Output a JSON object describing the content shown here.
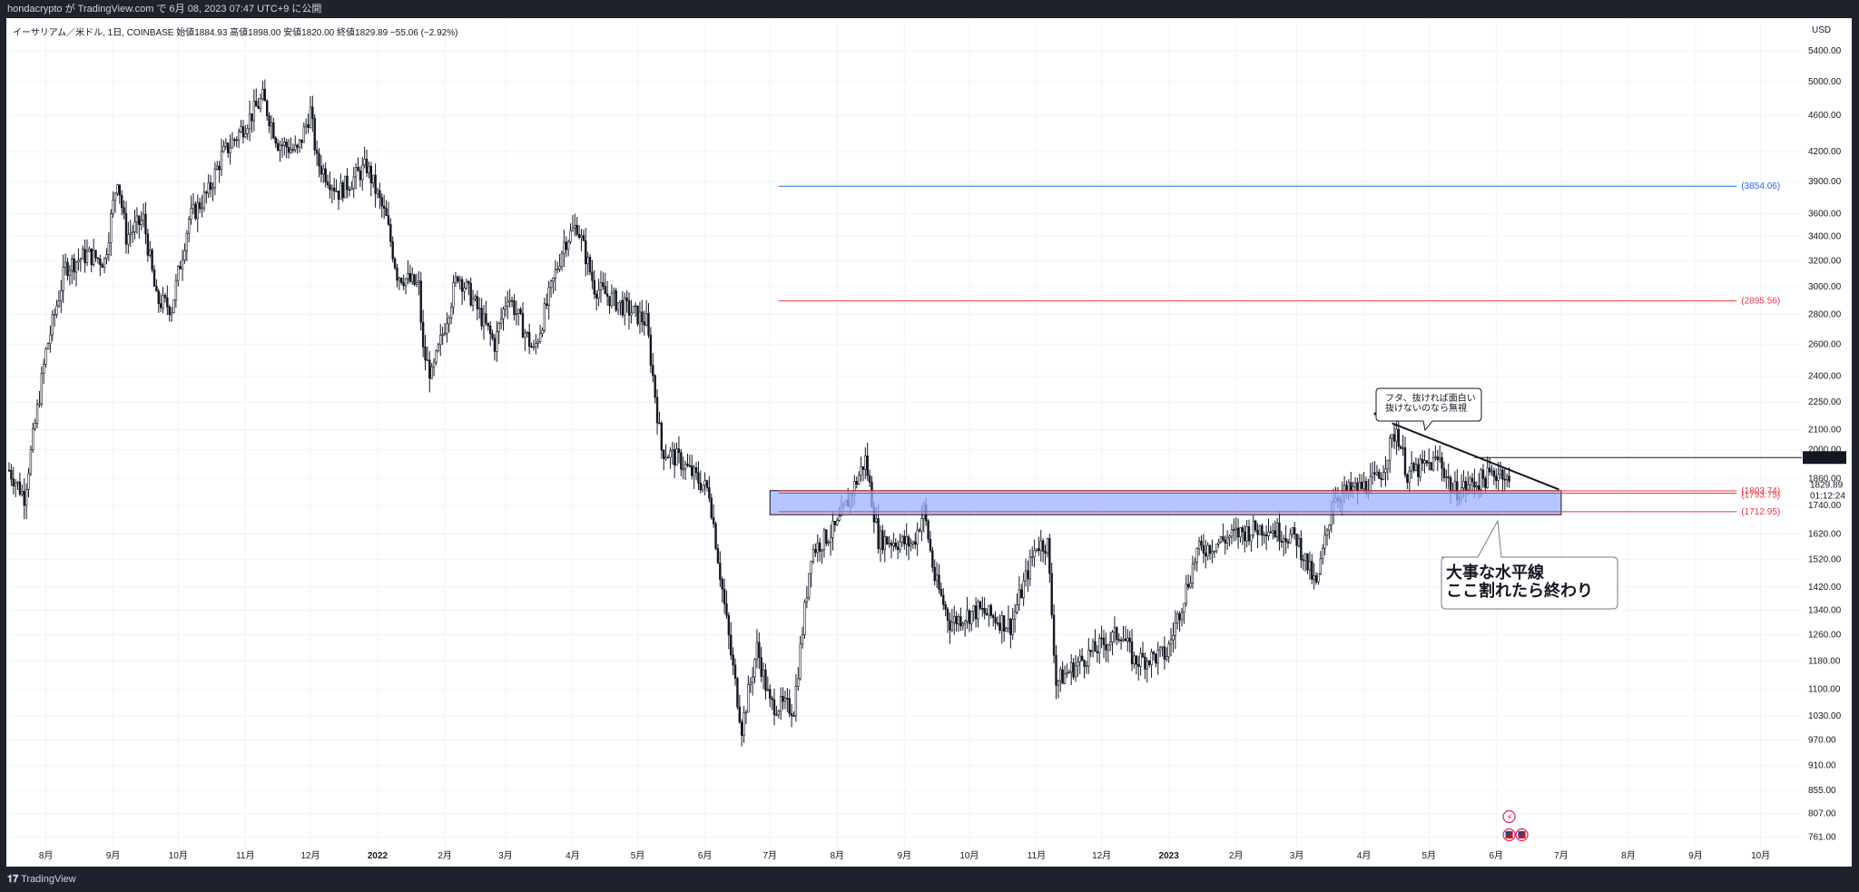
{
  "header": {
    "publish_text": "hondacrypto が TradingView.com で 6月 08, 2023 07:47 UTC+9 に公開"
  },
  "legend_text": "イーサリアム／米ドル, 1日, COINBASE  始値1884.93  高値1898.00  安値1820.00  終値1829.89  −55.06 (−2.92%)",
  "footer": {
    "brand": "TradingView"
  },
  "chart_data": {
    "type": "candlestick",
    "symbol": "イーサリアム／米ドル",
    "interval": "1日",
    "exchange": "COINBASE",
    "ohlc_last": {
      "open": 1884.93,
      "high": 1898.0,
      "low": 1820.0,
      "close": 1829.89,
      "change": -55.06,
      "change_pct": -2.92
    },
    "y_axis": {
      "unit": "USD",
      "scale": "log",
      "range": [
        740,
        5600
      ],
      "ticks": [
        761.0,
        807.0,
        855.0,
        910.0,
        970.0,
        1030.0,
        1100.0,
        1180.0,
        1260.0,
        1340.0,
        1420.0,
        1520.0,
        1620.0,
        1740.0,
        1860.0,
        2000.0,
        2100.0,
        2250.0,
        2400.0,
        2600.0,
        2800.0,
        3000.0,
        3200.0,
        3400.0,
        3600.0,
        3900.0,
        4200.0,
        4600.0,
        5000.0,
        5400.0
      ]
    },
    "x_axis": {
      "range": [
        "2021-07-15",
        "2023-10-20"
      ],
      "ticks": [
        {
          "date": "2021-08-01",
          "label": "8月"
        },
        {
          "date": "2021-09-01",
          "label": "9月"
        },
        {
          "date": "2021-10-01",
          "label": "10月"
        },
        {
          "date": "2021-11-01",
          "label": "11月"
        },
        {
          "date": "2021-12-01",
          "label": "12月"
        },
        {
          "date": "2022-01-01",
          "label": "2022"
        },
        {
          "date": "2022-02-01",
          "label": "2月"
        },
        {
          "date": "2022-03-01",
          "label": "3月"
        },
        {
          "date": "2022-04-01",
          "label": "4月"
        },
        {
          "date": "2022-05-01",
          "label": "5月"
        },
        {
          "date": "2022-06-01",
          "label": "6月"
        },
        {
          "date": "2022-07-01",
          "label": "7月"
        },
        {
          "date": "2022-08-01",
          "label": "8月"
        },
        {
          "date": "2022-09-01",
          "label": "9月"
        },
        {
          "date": "2022-10-01",
          "label": "10月"
        },
        {
          "date": "2022-11-01",
          "label": "11月"
        },
        {
          "date": "2022-12-01",
          "label": "12月"
        },
        {
          "date": "2023-01-01",
          "label": "2023"
        },
        {
          "date": "2023-02-01",
          "label": "2月"
        },
        {
          "date": "2023-03-01",
          "label": "3月"
        },
        {
          "date": "2023-04-01",
          "label": "4月"
        },
        {
          "date": "2023-05-01",
          "label": "5月"
        },
        {
          "date": "2023-06-01",
          "label": "6月"
        },
        {
          "date": "2023-07-01",
          "label": "7月"
        },
        {
          "date": "2023-08-01",
          "label": "8月"
        },
        {
          "date": "2023-09-01",
          "label": "9月"
        },
        {
          "date": "2023-10-01",
          "label": "10月"
        }
      ]
    },
    "price_path": [
      {
        "date": "2021-07-15",
        "price": 1900
      },
      {
        "date": "2021-07-22",
        "price": 1780
      },
      {
        "date": "2021-08-01",
        "price": 2550
      },
      {
        "date": "2021-08-10",
        "price": 3150
      },
      {
        "date": "2021-08-20",
        "price": 3250
      },
      {
        "date": "2021-08-28",
        "price": 3200
      },
      {
        "date": "2021-09-03",
        "price": 3950
      },
      {
        "date": "2021-09-07",
        "price": 3400
      },
      {
        "date": "2021-09-15",
        "price": 3550
      },
      {
        "date": "2021-09-21",
        "price": 2900
      },
      {
        "date": "2021-09-28",
        "price": 2850
      },
      {
        "date": "2021-10-06",
        "price": 3550
      },
      {
        "date": "2021-10-15",
        "price": 3800
      },
      {
        "date": "2021-10-21",
        "price": 4150
      },
      {
        "date": "2021-10-29",
        "price": 4400
      },
      {
        "date": "2021-11-09",
        "price": 4800
      },
      {
        "date": "2021-11-16",
        "price": 4300
      },
      {
        "date": "2021-11-25",
        "price": 4200
      },
      {
        "date": "2021-12-01",
        "price": 4650
      },
      {
        "date": "2021-12-04",
        "price": 4100
      },
      {
        "date": "2021-12-14",
        "price": 3800
      },
      {
        "date": "2021-12-27",
        "price": 4050
      },
      {
        "date": "2022-01-05",
        "price": 3550
      },
      {
        "date": "2022-01-10",
        "price": 3100
      },
      {
        "date": "2022-01-20",
        "price": 3000
      },
      {
        "date": "2022-01-22",
        "price": 2550
      },
      {
        "date": "2022-01-26",
        "price": 2400
      },
      {
        "date": "2022-02-07",
        "price": 3100
      },
      {
        "date": "2022-02-14",
        "price": 2900
      },
      {
        "date": "2022-02-24",
        "price": 2600
      },
      {
        "date": "2022-03-02",
        "price": 2950
      },
      {
        "date": "2022-03-14",
        "price": 2550
      },
      {
        "date": "2022-03-28",
        "price": 3350
      },
      {
        "date": "2022-04-03",
        "price": 3500
      },
      {
        "date": "2022-04-11",
        "price": 3000
      },
      {
        "date": "2022-04-25",
        "price": 2850
      },
      {
        "date": "2022-05-05",
        "price": 2750
      },
      {
        "date": "2022-05-12",
        "price": 2000
      },
      {
        "date": "2022-05-20",
        "price": 1950
      },
      {
        "date": "2022-06-03",
        "price": 1800
      },
      {
        "date": "2022-06-13",
        "price": 1200
      },
      {
        "date": "2022-06-18",
        "price": 1000
      },
      {
        "date": "2022-06-25",
        "price": 1220
      },
      {
        "date": "2022-07-01",
        "price": 1060
      },
      {
        "date": "2022-07-12",
        "price": 1050
      },
      {
        "date": "2022-07-20",
        "price": 1550
      },
      {
        "date": "2022-08-01",
        "price": 1650
      },
      {
        "date": "2022-08-14",
        "price": 1950
      },
      {
        "date": "2022-08-20",
        "price": 1600
      },
      {
        "date": "2022-09-05",
        "price": 1580
      },
      {
        "date": "2022-09-10",
        "price": 1720
      },
      {
        "date": "2022-09-15",
        "price": 1450
      },
      {
        "date": "2022-09-22",
        "price": 1300
      },
      {
        "date": "2022-10-05",
        "price": 1340
      },
      {
        "date": "2022-10-20",
        "price": 1290
      },
      {
        "date": "2022-11-01",
        "price": 1580
      },
      {
        "date": "2022-11-06",
        "price": 1580
      },
      {
        "date": "2022-11-10",
        "price": 1120
      },
      {
        "date": "2022-11-25",
        "price": 1200
      },
      {
        "date": "2022-12-10",
        "price": 1270
      },
      {
        "date": "2022-12-16",
        "price": 1180
      },
      {
        "date": "2022-12-31",
        "price": 1200
      },
      {
        "date": "2023-01-14",
        "price": 1550
      },
      {
        "date": "2023-02-01",
        "price": 1620
      },
      {
        "date": "2023-02-15",
        "price": 1650
      },
      {
        "date": "2023-03-01",
        "price": 1600
      },
      {
        "date": "2023-03-10",
        "price": 1420
      },
      {
        "date": "2023-03-18",
        "price": 1780
      },
      {
        "date": "2023-03-31",
        "price": 1820
      },
      {
        "date": "2023-04-08",
        "price": 1860
      },
      {
        "date": "2023-04-16",
        "price": 2110
      },
      {
        "date": "2023-04-21",
        "price": 1880
      },
      {
        "date": "2023-05-06",
        "price": 1950
      },
      {
        "date": "2023-05-12",
        "price": 1800
      },
      {
        "date": "2023-05-31",
        "price": 1880
      },
      {
        "date": "2023-06-04",
        "price": 1900
      },
      {
        "date": "2023-06-07",
        "price": 1830
      }
    ],
    "annotations": {
      "horizontal_levels": [
        {
          "label": "(3854.06)",
          "price": 3854.06,
          "color": "#2962ff",
          "from": "2022-07-05",
          "to": "2023-09-20"
        },
        {
          "label": "(2895.56)",
          "price": 2895.56,
          "color": "#f23645",
          "from": "2022-07-05",
          "to": "2023-09-20"
        },
        {
          "label": "(1803.74)",
          "price": 1803.74,
          "color": "#f23645",
          "from": "2022-07-05",
          "to": "2023-09-20"
        },
        {
          "label": "(1793.75)",
          "price": 1793.75,
          "color": "#f23645",
          "from": "2022-07-05",
          "to": "2023-09-20"
        },
        {
          "label": "(1712.95)",
          "price": 1712.95,
          "color": "#f23645",
          "from": "2022-07-05",
          "to": "2023-09-20"
        }
      ],
      "zone": {
        "from": "2022-07-01",
        "to": "2023-07-01",
        "low": 1700,
        "high": 1805,
        "color": "#9db1ff"
      },
      "trendline": {
        "from_date": "2023-04-14",
        "from_price": 2135,
        "to_date": "2023-06-30",
        "to_price": 1810
      },
      "resistance_line": {
        "price": 1960.04,
        "from": "2023-05-22"
      },
      "callout_small": {
        "lines": [
          "フタ、抜ければ面白い",
          "抜けないのなら無視"
        ]
      },
      "callout_large": {
        "lines": [
          "大事な水平線",
          "ここ割れたら終わり"
        ]
      },
      "price_tags": {
        "resistance": "1960.04",
        "last": "1829.89",
        "countdown": "01:12:24"
      },
      "event_icons": [
        "lightning-icon",
        "us-flag-icon",
        "us-flag-icon"
      ]
    }
  }
}
